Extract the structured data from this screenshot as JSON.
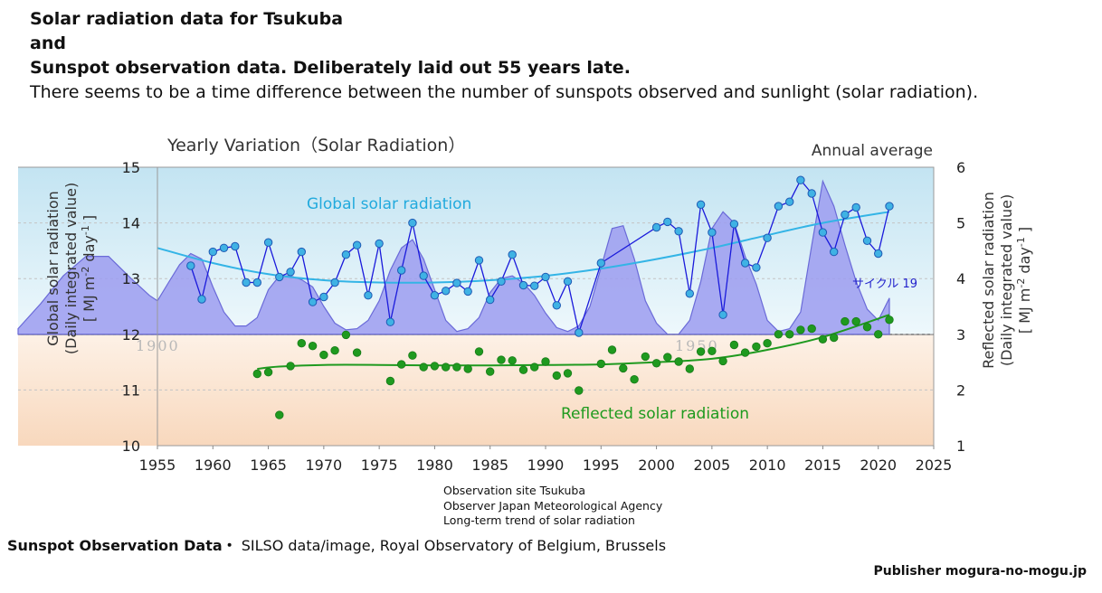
{
  "header": {
    "line1": "Solar radiation data for Tsukuba",
    "line2": "and",
    "line3": "Sunspot observation data. Deliberately laid out 55 years late.",
    "line4": "There seems to be a time difference between the number of sunspots observed and sunlight (solar radiation)."
  },
  "notes": {
    "site": "Observation site Tsukuba",
    "observer": "Observer Japan Meteorological Agency",
    "trend": "Long-term trend of solar radiation"
  },
  "source": {
    "label": "Sunspot Observation Data・",
    "text": " SILSO data/image, Royal Observatory of Belgium, Brussels"
  },
  "publisher": "Publisher mogura-no-mogu.jp",
  "colors": {
    "global": "#1a1adb",
    "global_trend": "#33b4e6",
    "reflected": "#1f9a1f",
    "sunspot_fill": "#9c9cf0",
    "sunspot_edge": "#6a6ad8",
    "label_global": "#22aadd",
    "label_reflected": "#1e9a1e",
    "label_cycle": "#2222cc"
  },
  "chart_data": {
    "type": "line",
    "title": "Yearly Variation（Solar Radiation）",
    "subtitle": "Annual average",
    "xlabel": "",
    "ylabel": "Global solar radiation (Daily integrated value) [ MJ m-2 day-1 ]",
    "ylabel_lines": [
      "Global solar radiation",
      "(Daily integrated value)",
      "[ MJ m",
      "-2",
      " day",
      "-1",
      " ]"
    ],
    "y2label_lines": [
      "Reflected solar radiation",
      "(Daily integrated value)",
      "[ MJ m",
      "-2",
      " day",
      "-1",
      " ]"
    ],
    "xlim": [
      1955,
      2025
    ],
    "ylim": [
      10,
      15
    ],
    "y2lim": [
      1,
      6
    ],
    "x_ticks": [
      "1955",
      "1960",
      "1965",
      "1970",
      "1975",
      "1980",
      "1985",
      "1990",
      "1995",
      "2000",
      "2005",
      "2010",
      "2015",
      "2020",
      "2025"
    ],
    "y_ticks": [
      "10",
      "11",
      "12",
      "13",
      "14",
      "15"
    ],
    "y2_ticks": [
      "1",
      "2",
      "3",
      "4",
      "5",
      "6"
    ],
    "grid": "horizontal",
    "annotations": {
      "global_label": "Global solar radiation",
      "reflected_label": "Reflected solar radiation",
      "cycle_label": "サイクル 19",
      "faded_1900": "1900",
      "faded_1950": "1950"
    },
    "series": [
      {
        "name": "Global solar radiation",
        "kind": "line+markers",
        "axis": "left",
        "x": [
          1958,
          1959,
          1960,
          1961,
          1962,
          1963,
          1964,
          1965,
          1966,
          1967,
          1968,
          1969,
          1970,
          1971,
          1972,
          1973,
          1974,
          1975,
          1976,
          1977,
          1978,
          1979,
          1980,
          1981,
          1982,
          1983,
          1984,
          1985,
          1986,
          1987,
          1988,
          1989,
          1990,
          1991,
          1992,
          1993,
          1995,
          2000,
          2001,
          2002,
          2003,
          2004,
          2005,
          2006,
          2007,
          2008,
          2009,
          2010,
          2011,
          2012,
          2013,
          2014,
          2015,
          2016,
          2017,
          2018,
          2019,
          2020,
          2021
        ],
        "values": [
          13.23,
          12.63,
          13.48,
          13.55,
          13.58,
          12.93,
          12.93,
          13.65,
          13.03,
          13.12,
          13.48,
          12.58,
          12.67,
          12.93,
          13.43,
          13.6,
          12.7,
          13.63,
          12.22,
          13.15,
          14.0,
          13.05,
          12.7,
          12.78,
          12.92,
          12.77,
          13.33,
          12.62,
          12.95,
          13.43,
          12.88,
          12.87,
          13.03,
          12.52,
          12.95,
          12.03,
          13.28,
          13.92,
          14.02,
          13.85,
          12.73,
          14.33,
          13.83,
          12.35,
          13.98,
          13.28,
          13.2,
          13.73,
          14.3,
          14.38,
          14.77,
          14.53,
          13.83,
          13.48,
          14.15,
          14.28,
          13.68,
          13.45,
          14.3
        ]
      },
      {
        "name": "Reflected solar radiation",
        "kind": "scatter",
        "axis": "right",
        "x": [
          1964,
          1965,
          1966,
          1967,
          1968,
          1969,
          1970,
          1971,
          1972,
          1973,
          1976,
          1977,
          1978,
          1979,
          1980,
          1981,
          1982,
          1983,
          1984,
          1985,
          1986,
          1987,
          1988,
          1989,
          1990,
          1991,
          1992,
          1993,
          1995,
          1996,
          1997,
          1998,
          1999,
          2000,
          2001,
          2002,
          2003,
          2004,
          2005,
          2006,
          2007,
          2008,
          2009,
          2010,
          2011,
          2012,
          2013,
          2014,
          2015,
          2016,
          2017,
          2018,
          2019,
          2020,
          2021
        ],
        "values": [
          2.29,
          2.32,
          1.55,
          2.43,
          2.84,
          2.79,
          2.63,
          2.71,
          2.99,
          2.67,
          2.16,
          2.46,
          2.62,
          2.41,
          2.43,
          2.41,
          2.41,
          2.38,
          2.69,
          2.33,
          2.54,
          2.53,
          2.36,
          2.41,
          2.51,
          2.26,
          2.3,
          1.99,
          2.47,
          2.72,
          2.39,
          2.19,
          2.6,
          2.48,
          2.59,
          2.51,
          2.38,
          2.69,
          2.7,
          2.52,
          2.81,
          2.67,
          2.78,
          2.84,
          3.0,
          3.0,
          3.08,
          3.1,
          2.91,
          2.94,
          3.23,
          3.23,
          3.13,
          3.0,
          3.26
        ]
      },
      {
        "name": "Global solar radiation trend",
        "kind": "smooth",
        "axis": "left",
        "x": [
          1955,
          1960,
          1965,
          1970,
          1975,
          1980,
          1985,
          1990,
          1995,
          2000,
          2005,
          2010,
          2015,
          2021
        ],
        "values": [
          13.55,
          13.28,
          13.08,
          12.97,
          12.93,
          12.93,
          12.97,
          13.05,
          13.18,
          13.35,
          13.55,
          13.78,
          14.0,
          14.2
        ]
      },
      {
        "name": "Reflected solar radiation trend",
        "kind": "smooth",
        "axis": "right",
        "x": [
          1964,
          1966,
          1970,
          1975,
          1980,
          1985,
          1990,
          1995,
          2000,
          2005,
          2010,
          2015,
          2021
        ],
        "values": [
          2.38,
          2.42,
          2.45,
          2.45,
          2.44,
          2.44,
          2.45,
          2.46,
          2.5,
          2.56,
          2.72,
          2.95,
          3.35
        ]
      },
      {
        "name": "Sunspot number (shifted 55 years)",
        "kind": "area",
        "axis": "left",
        "x": [
          1955,
          1956,
          1957,
          1958,
          1959,
          1960,
          1961,
          1962,
          1963,
          1964,
          1965,
          1966,
          1967,
          1968,
          1969,
          1970,
          1971,
          1972,
          1973,
          1974,
          1975,
          1976,
          1977,
          1978,
          1979,
          1980,
          1981,
          1982,
          1983,
          1984,
          1985,
          1986,
          1987,
          1988,
          1989,
          1990,
          1991,
          1992,
          1993,
          1994,
          1995,
          1996,
          1997,
          1998,
          1999,
          2000,
          2001,
          2002,
          2003,
          2004,
          2005,
          2006,
          2007,
          2008,
          2009,
          2010,
          2011,
          2012,
          2013,
          2014,
          2015,
          2016,
          2017,
          2018,
          2019,
          2020,
          2021
        ],
        "values": [
          12.6,
          12.93,
          13.25,
          13.45,
          13.35,
          12.85,
          12.4,
          12.15,
          12.15,
          12.3,
          12.8,
          13.05,
          13.05,
          12.98,
          12.85,
          12.5,
          12.2,
          12.08,
          12.1,
          12.25,
          12.6,
          13.15,
          13.55,
          13.7,
          13.35,
          12.8,
          12.25,
          12.05,
          12.1,
          12.3,
          12.75,
          13.0,
          13.05,
          12.92,
          12.7,
          12.38,
          12.12,
          12.05,
          12.15,
          12.5,
          13.2,
          13.9,
          13.95,
          13.35,
          12.6,
          12.2,
          12.0,
          12.0,
          12.25,
          12.95,
          13.9,
          14.2,
          14.0,
          13.4,
          12.9,
          12.25,
          12.05,
          12.1,
          12.4,
          13.6,
          14.75,
          14.3,
          13.6,
          12.95,
          12.45,
          12.25,
          12.65
        ]
      }
    ]
  }
}
